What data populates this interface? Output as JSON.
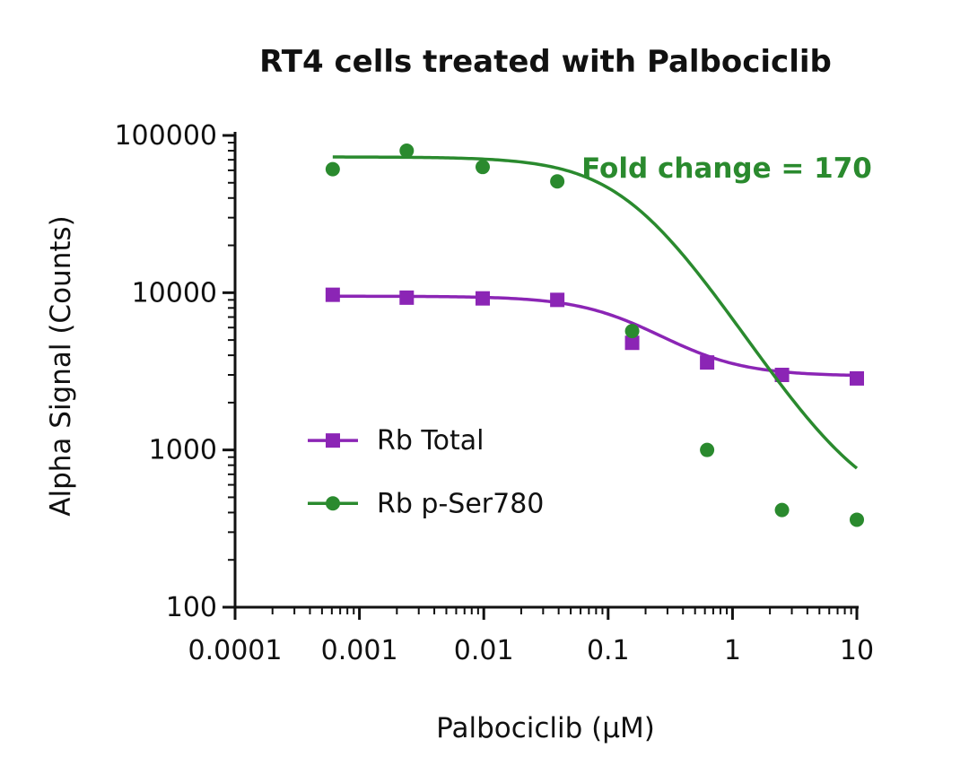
{
  "colors": {
    "rb_total": "#8B25B5",
    "rb_pser780": "#2A8A2E",
    "axis": "#111111"
  },
  "chart_data": {
    "type": "scatter",
    "title": "RT4 cells treated with Palbociclib",
    "xlabel": "Palbociclib (µM)",
    "ylabel": "Alpha Signal (Counts)",
    "x_scale": "log",
    "y_scale": "log",
    "xlim": [
      0.0001,
      10
    ],
    "ylim": [
      100,
      100000
    ],
    "x_tick_labels": [
      "0.0001",
      "0.001",
      "0.01",
      "0.1",
      "1",
      "10"
    ],
    "y_tick_labels": [
      "100",
      "1000",
      "10000",
      "100000"
    ],
    "legend_position": "center-left",
    "annotation": "Fold change = 170",
    "series": [
      {
        "name": "Rb Total",
        "marker": "square",
        "color": "#8B25B5",
        "x": [
          0.00061,
          0.0024,
          0.0098,
          0.039,
          0.156,
          0.625,
          2.5,
          10
        ],
        "y": [
          9700,
          9300,
          9200,
          9000,
          4800,
          3600,
          3000,
          2850
        ],
        "fit": {
          "top": 9500,
          "bottom": 2950,
          "ec50": 0.17,
          "hill": 1.3
        }
      },
      {
        "name": "Rb p-Ser780",
        "marker": "circle",
        "color": "#2A8A2E",
        "x": [
          0.00061,
          0.0024,
          0.0098,
          0.039,
          0.156,
          0.625,
          2.5,
          10
        ],
        "y": [
          61000,
          80000,
          63000,
          51000,
          5700,
          1000,
          415,
          360
        ],
        "fit": {
          "top": 73000,
          "bottom": 370,
          "ec50": 0.155,
          "hill": 1.25
        }
      }
    ]
  }
}
